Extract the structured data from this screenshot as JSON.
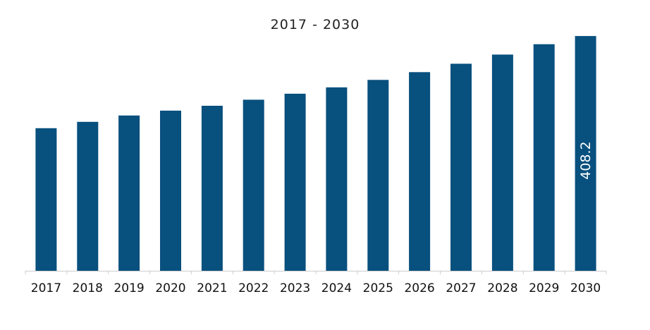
{
  "chart_data": {
    "type": "bar",
    "title": "2017 - 2030",
    "xlabel": "",
    "ylabel": "",
    "categories": [
      "2017",
      "2018",
      "2019",
      "2020",
      "2021",
      "2022",
      "2023",
      "2024",
      "2025",
      "2026",
      "2027",
      "2028",
      "2029",
      "2030"
    ],
    "values": [
      248.0,
      259.0,
      270.0,
      278.5,
      287.0,
      297.5,
      308.0,
      319.0,
      332.0,
      345.5,
      360.0,
      376.0,
      394.0,
      408.2
    ],
    "data_labels": {
      "2030": "408.2"
    },
    "ylim": [
      0,
      428
    ],
    "grid": false,
    "legend": "none",
    "colors": {
      "bar": "#08507E",
      "axis": "#cccccc"
    }
  }
}
